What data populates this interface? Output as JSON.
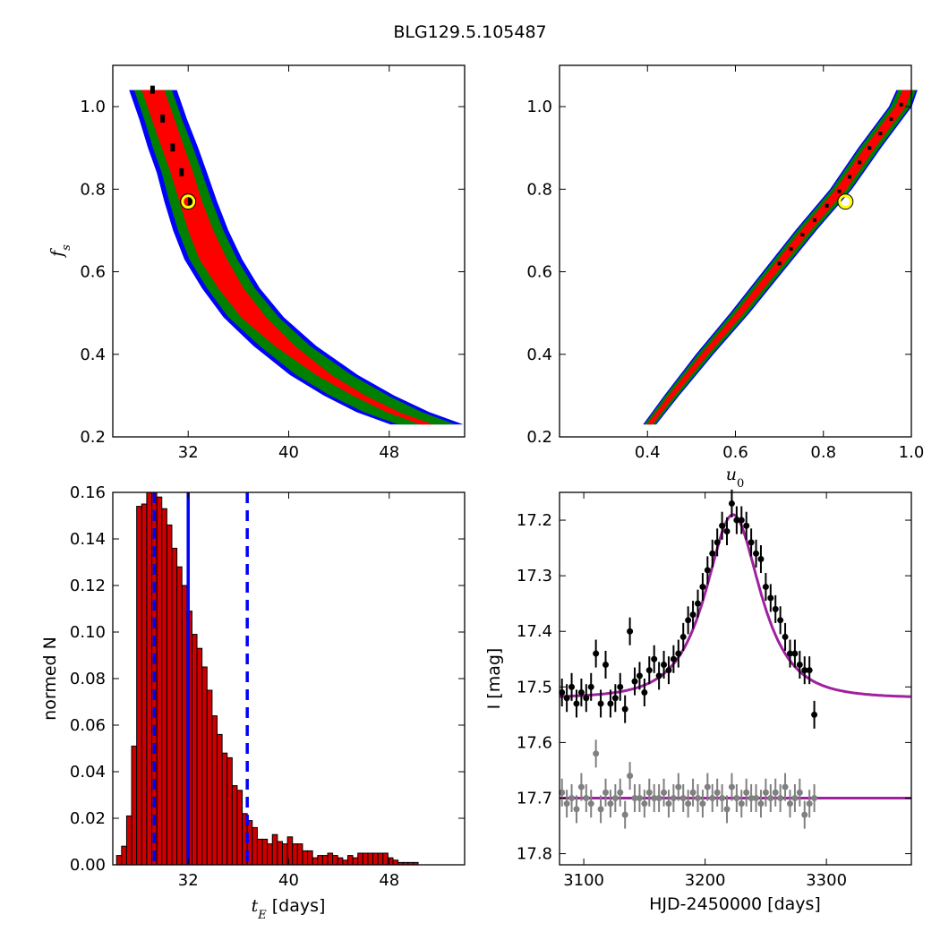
{
  "figure": {
    "title": "BLG129.5.105487"
  },
  "colors": {
    "contour_3sigma": "#0000ff",
    "contour_2sigma": "#008000",
    "contour_1sigma": "#ff0000",
    "best_fit_marker": "#ffff00",
    "histogram_bar": "#cc0000",
    "histogram_lines": "#0000ff",
    "model_curve": "#a020a0",
    "I_band_points": "#000000",
    "residual_points": "#808080"
  },
  "chart_data": [
    {
      "panel": "top-left",
      "type": "heatmap",
      "xlabel": "",
      "ylabel": "f_s",
      "xlim": [
        26,
        54
      ],
      "ylim": [
        0.2,
        1.1
      ],
      "xticks": [
        "32",
        "40",
        "48"
      ],
      "yticks": [
        "0.2",
        "0.4",
        "0.6",
        "0.8",
        "1.0"
      ],
      "grid": false,
      "best_fit": {
        "x": 32.0,
        "y": 0.77
      },
      "band": {
        "fs": [
          1.04,
          0.97,
          0.9,
          0.84,
          0.77,
          0.7,
          0.63,
          0.56,
          0.49,
          0.42,
          0.35,
          0.3,
          0.26,
          0.23
        ],
        "tE": [
          29.2,
          30.0,
          30.8,
          31.5,
          32.2,
          33.0,
          34.0,
          35.4,
          37.2,
          39.7,
          42.8,
          45.6,
          48.3,
          51.0
        ],
        "half_width_1sigma": [
          0.9,
          0.9,
          0.9,
          0.9,
          0.9,
          1.0,
          1.1,
          1.0,
          1.0,
          0.8,
          0.6,
          0.5,
          0.5,
          0.5
        ],
        "half_width_2sigma": [
          1.5,
          1.5,
          1.6,
          1.6,
          1.7,
          1.8,
          1.9,
          1.9,
          2.0,
          2.0,
          2.2,
          2.3,
          2.3,
          2.3
        ],
        "half_width_3sigma": [
          1.9,
          1.9,
          2.0,
          2.0,
          2.1,
          2.2,
          2.3,
          2.3,
          2.4,
          2.5,
          2.7,
          2.8,
          2.9,
          2.9
        ]
      }
    },
    {
      "panel": "top-right",
      "type": "heatmap",
      "xlabel": "u_0",
      "ylabel": "",
      "xlim": [
        0.2,
        1.0
      ],
      "ylim": [
        0.2,
        1.1
      ],
      "xticks": [
        "0.4",
        "0.6",
        "0.8",
        "1.0"
      ],
      "yticks": [
        "0.2",
        "0.4",
        "0.6",
        "0.8",
        "1.0"
      ],
      "grid": false,
      "best_fit": {
        "x": 0.85,
        "y": 0.77
      },
      "band": {
        "fs": [
          0.23,
          0.3,
          0.4,
          0.5,
          0.6,
          0.7,
          0.8,
          0.9,
          1.0,
          1.04
        ],
        "u0": [
          0.405,
          0.455,
          0.53,
          0.61,
          0.685,
          0.76,
          0.84,
          0.905,
          0.975,
          0.99
        ],
        "half_width_1sigma": [
          0.006,
          0.007,
          0.008,
          0.009,
          0.01,
          0.011,
          0.012,
          0.012,
          0.012,
          0.01
        ],
        "half_width_2sigma": [
          0.012,
          0.014,
          0.016,
          0.018,
          0.019,
          0.02,
          0.021,
          0.022,
          0.022,
          0.02
        ],
        "half_width_3sigma": [
          0.015,
          0.017,
          0.02,
          0.022,
          0.023,
          0.024,
          0.025,
          0.026,
          0.026,
          0.024
        ]
      }
    },
    {
      "panel": "bottom-left",
      "type": "bar",
      "xlabel": "t_E [days]",
      "ylabel": "normed N",
      "xlim": [
        26,
        54
      ],
      "ylim": [
        0,
        0.16
      ],
      "xticks": [
        "32",
        "40",
        "48"
      ],
      "yticks": [
        "0.00",
        "0.02",
        "0.04",
        "0.06",
        "0.08",
        "0.10",
        "0.12",
        "0.14",
        "0.16"
      ],
      "grid": false,
      "bin_start": 26.3,
      "bin_width": 0.4,
      "values": [
        0.004,
        0.008,
        0.021,
        0.051,
        0.154,
        0.155,
        0.165,
        0.167,
        0.158,
        0.153,
        0.146,
        0.136,
        0.128,
        0.12,
        0.109,
        0.099,
        0.093,
        0.085,
        0.075,
        0.064,
        0.056,
        0.048,
        0.046,
        0.034,
        0.032,
        0.022,
        0.019,
        0.016,
        0.011,
        0.011,
        0.009,
        0.013,
        0.01,
        0.009,
        0.012,
        0.009,
        0.009,
        0.006,
        0.006,
        0.003,
        0.004,
        0.004,
        0.005,
        0.004,
        0.003,
        0.002,
        0.004,
        0.003,
        0.005,
        0.005,
        0.005,
        0.005,
        0.005,
        0.005,
        0.003,
        0.002,
        0.001,
        0.001,
        0.001,
        0.001
      ],
      "vlines": [
        {
          "x": 29.3,
          "style": "dashed"
        },
        {
          "x": 32.0,
          "style": "solid"
        },
        {
          "x": 36.7,
          "style": "dashed"
        }
      ]
    },
    {
      "panel": "bottom-right",
      "type": "scatter",
      "xlabel": "HJD-2450000 [days]",
      "ylabel": "I [mag]",
      "xlim": [
        3080,
        3370
      ],
      "ylim": [
        17.82,
        17.15
      ],
      "y_inverted": true,
      "xticks": [
        "3100",
        "3200",
        "3300"
      ],
      "yticks": [
        "17.2",
        "17.3",
        "17.4",
        "17.5",
        "17.6",
        "17.7",
        "17.8"
      ],
      "grid": false,
      "model": {
        "baseline": 17.52,
        "peak": 17.19,
        "t0": 3223,
        "tE": 32.0,
        "u0": 0.85,
        "fs": 0.77
      },
      "residual_baseline": 17.7,
      "series": [
        {
          "role": "I-band photometry",
          "x": [
            3082,
            3086,
            3090,
            3094,
            3098,
            3102,
            3106,
            3110,
            3114,
            3118,
            3122,
            3126,
            3130,
            3134,
            3138,
            3142,
            3146,
            3150,
            3154,
            3158,
            3162,
            3166,
            3170,
            3174,
            3178,
            3182,
            3186,
            3190,
            3194,
            3198,
            3202,
            3206,
            3210,
            3214,
            3218,
            3222,
            3226,
            3230,
            3234,
            3238,
            3242,
            3246,
            3250,
            3254,
            3258,
            3262,
            3266,
            3270,
            3274,
            3278,
            3282,
            3286,
            3290
          ],
          "y": [
            17.51,
            17.52,
            17.5,
            17.53,
            17.51,
            17.52,
            17.5,
            17.44,
            17.53,
            17.46,
            17.53,
            17.52,
            17.5,
            17.54,
            17.4,
            17.49,
            17.48,
            17.51,
            17.47,
            17.45,
            17.48,
            17.46,
            17.47,
            17.45,
            17.44,
            17.41,
            17.38,
            17.37,
            17.35,
            17.32,
            17.29,
            17.26,
            17.24,
            17.21,
            17.22,
            17.17,
            17.2,
            17.2,
            17.21,
            17.24,
            17.26,
            17.27,
            17.32,
            17.34,
            17.36,
            17.38,
            17.41,
            17.44,
            17.44,
            17.46,
            17.47,
            17.47,
            17.55
          ],
          "yerr": 0.025
        },
        {
          "role": "residuals (offset)",
          "x": [
            3082,
            3086,
            3090,
            3094,
            3098,
            3102,
            3106,
            3110,
            3114,
            3118,
            3122,
            3126,
            3130,
            3134,
            3138,
            3142,
            3146,
            3150,
            3154,
            3158,
            3162,
            3166,
            3170,
            3174,
            3178,
            3182,
            3186,
            3190,
            3194,
            3198,
            3202,
            3206,
            3210,
            3214,
            3218,
            3222,
            3226,
            3230,
            3234,
            3238,
            3242,
            3246,
            3250,
            3254,
            3258,
            3262,
            3266,
            3270,
            3274,
            3278,
            3282,
            3286,
            3290
          ],
          "y": [
            17.69,
            17.71,
            17.7,
            17.72,
            17.68,
            17.7,
            17.71,
            17.62,
            17.72,
            17.69,
            17.71,
            17.7,
            17.69,
            17.73,
            17.66,
            17.7,
            17.7,
            17.71,
            17.69,
            17.7,
            17.7,
            17.69,
            17.71,
            17.7,
            17.68,
            17.7,
            17.71,
            17.69,
            17.7,
            17.71,
            17.68,
            17.7,
            17.69,
            17.7,
            17.72,
            17.68,
            17.7,
            17.71,
            17.69,
            17.7,
            17.7,
            17.71,
            17.69,
            17.7,
            17.69,
            17.7,
            17.68,
            17.71,
            17.7,
            17.69,
            17.73,
            17.71,
            17.7
          ],
          "yerr": 0.025
        }
      ]
    }
  ]
}
